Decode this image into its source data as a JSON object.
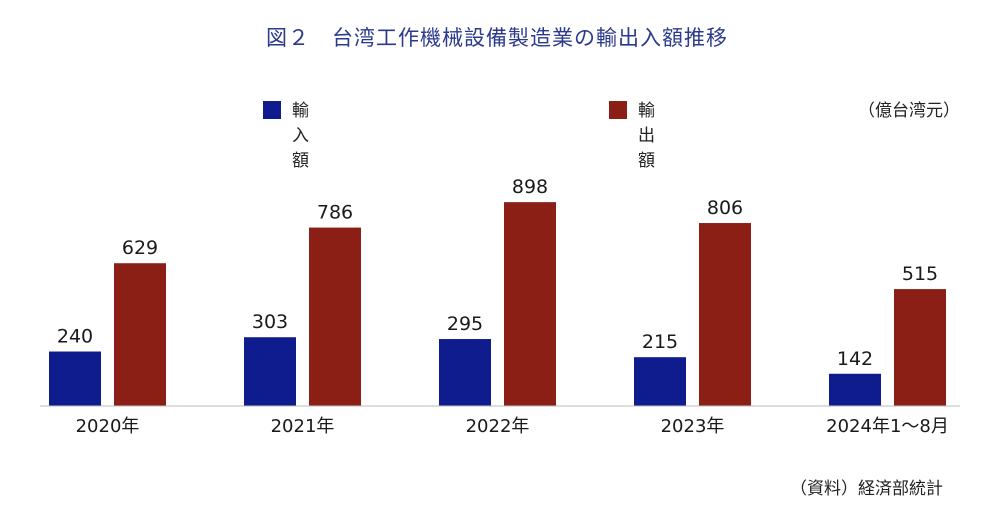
{
  "chart_data": {
    "type": "bar",
    "title": "図２　台湾工作機械設備製造業の輸出入額推移",
    "unit": "（億台湾元）",
    "source": "（資料）経済部統計",
    "categories": [
      "2020年",
      "2021年",
      "2022年",
      "2023年",
      "2024年1～8月"
    ],
    "series": [
      {
        "name": "輸入額",
        "values": [
          240,
          303,
          295,
          215,
          142
        ],
        "color": "#0f1c8e"
      },
      {
        "name": "輸出額",
        "values": [
          629,
          786,
          898,
          806,
          515
        ],
        "color": "#8b1f16"
      }
    ],
    "ylim": [
      0,
      1000
    ],
    "grid": false,
    "legend_position": "top"
  }
}
